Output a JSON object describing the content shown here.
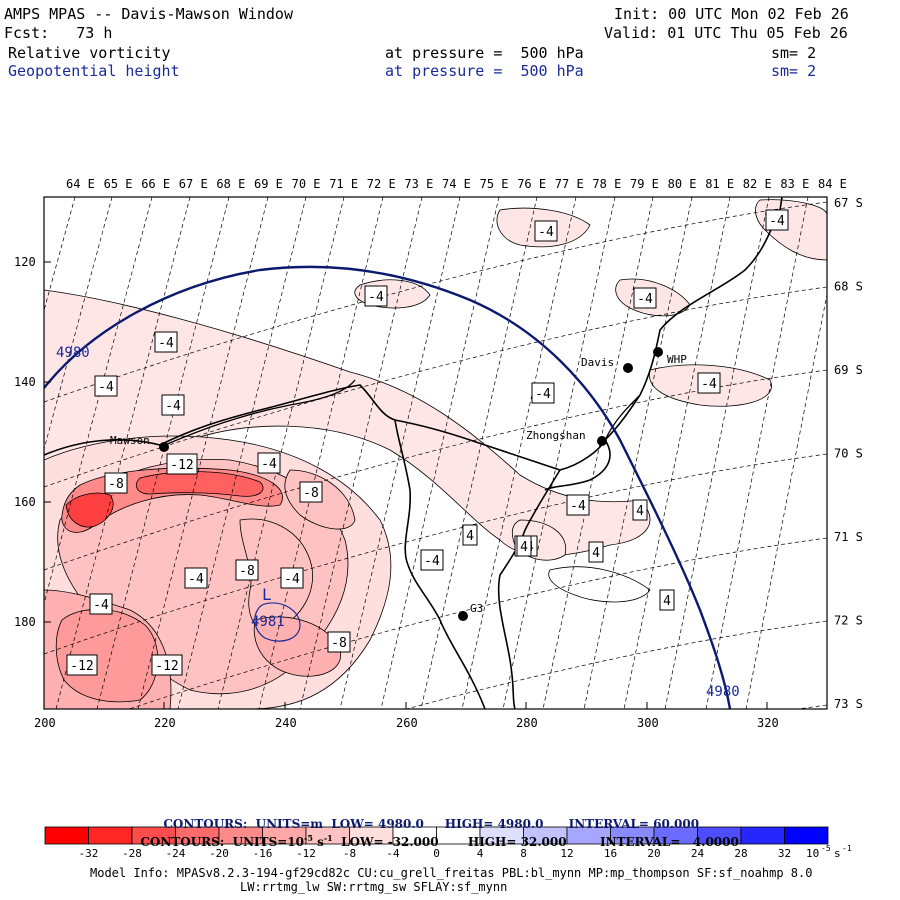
{
  "header": {
    "title": "AMPS MPAS -- Davis-Mawson Window",
    "init": "Init: 00 UTC Mon 02 Feb 26",
    "fcst": "Fcst:   73 h",
    "valid": "Valid: 01 UTC Thu 05 Feb 26",
    "field1_name": "Relative vorticity",
    "field1_level": "at pressure =  500 hPa",
    "field1_sm": "sm= 2",
    "field2_name": "Geopotential height",
    "field2_level": "at pressure =  500 hPa",
    "field2_sm": "sm= 2"
  },
  "map": {
    "lon_labels": [
      "64 E",
      "65 E",
      "66 E",
      "67 E",
      "68 E",
      "69 E",
      "70 E",
      "71 E",
      "72 E",
      "73 E",
      "74 E",
      "75 E",
      "76 E",
      "77 E",
      "78 E",
      "79 E",
      "80 E",
      "81 E",
      "82 E",
      "83 E",
      "84 E"
    ],
    "lat_labels": [
      "67 S",
      "68 S",
      "69 S",
      "70 S",
      "71 S",
      "72 S",
      "73 S"
    ],
    "x_ticks": [
      "200",
      "220",
      "240",
      "260",
      "280",
      "300",
      "320"
    ],
    "y_ticks": [
      "120",
      "140",
      "160",
      "180"
    ],
    "stations": [
      {
        "name": "Davis"
      },
      {
        "name": "WHP"
      },
      {
        "name": "Mawson"
      },
      {
        "name": "Zhongshan"
      },
      {
        "name": "G3"
      }
    ],
    "height_labels": [
      "4980",
      "4980",
      "4981"
    ],
    "low_marker": "L",
    "vort_labels": [
      "-4",
      "-4",
      "-4",
      "-4",
      "-4",
      "-4",
      "-4",
      "-4",
      "-4",
      "-4",
      "-4",
      "-4",
      "-4",
      "-4",
      "-8",
      "-8",
      "-8",
      "-8",
      "-12",
      "-12",
      "-12",
      "-4",
      "4",
      "4",
      "4",
      "4",
      "-4",
      "4"
    ]
  },
  "contours_info": {
    "line1_label": "CONTOURS:  UNITS=m  LOW=",
    "line1_low": "4980.0",
    "line1_high_label": "HIGH=",
    "line1_high": "4980.0",
    "line1_int_label": "INTERVAL=",
    "line1_int": "60.000",
    "line2_label": "CONTOURS:  UNITS=10",
    "line2_exp": "-5",
    "line2_unit": " s",
    "line2_unit_exp": "-1",
    "line2_low_label": "LOW=",
    "line2_low": "-32.000",
    "line2_high_label": "HIGH=",
    "line2_high": "32.000",
    "line2_int_label": "INTERVAL=",
    "line2_int": "4.0000"
  },
  "colorbar": {
    "colors": [
      "#ff0000",
      "#ff2626",
      "#ff4d4d",
      "#ff6b6b",
      "#ff8a8a",
      "#ffa6a6",
      "#ffc2c2",
      "#ffdede",
      "#ffffff",
      "#ffffff",
      "#dedeff",
      "#c2c2ff",
      "#a6a6ff",
      "#8a8aff",
      "#6b6bff",
      "#4d4dff",
      "#2626ff",
      "#0000ff"
    ],
    "ticks": [
      "-32",
      "-28",
      "-24",
      "-20",
      "-16",
      "-12",
      "-8",
      "-4",
      "0",
      "4",
      "8",
      "12",
      "16",
      "20",
      "24",
      "28",
      "32"
    ],
    "unit": "10",
    "unit_exp": "-5",
    "unit_s": "s",
    "unit_s_exp": "-1"
  },
  "footer": {
    "line1": "Model Info: MPASv8.2.3-194-gf29cd82c CU:cu_grell_freitas PBL:bl_mynn MP:mp_thompson SF:sf_noahmp 8.0",
    "line2": "LW:rrtmg_lw SW:rrtmg_sw SFLAY:sf_mynn"
  }
}
